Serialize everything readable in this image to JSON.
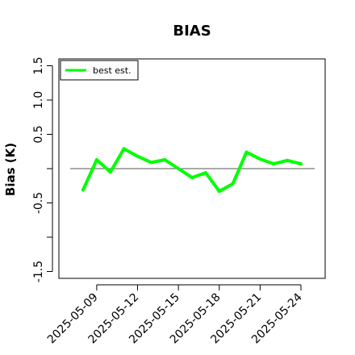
{
  "chart_data": {
    "type": "line",
    "title": "BIAS",
    "xlabel": "",
    "ylabel": "Bias (K)",
    "ylim": [
      -1.6,
      1.6
    ],
    "yticks": [
      -1.5,
      -1.0,
      -0.5,
      0.0,
      0.5,
      1.0,
      1.5
    ],
    "ytick_labels": [
      "-1.5",
      "",
      "-0.5",
      "",
      "0.5",
      "1.0",
      "1.5"
    ],
    "x": [
      "2025-05-08",
      "2025-05-09",
      "2025-05-10",
      "2025-05-11",
      "2025-05-12",
      "2025-05-13",
      "2025-05-14",
      "2025-05-15",
      "2025-05-16",
      "2025-05-17",
      "2025-05-18",
      "2025-05-19",
      "2025-05-20",
      "2025-05-21",
      "2025-05-22",
      "2025-05-23",
      "2025-05-24"
    ],
    "xticks": [
      "2025-05-09",
      "2025-05-12",
      "2025-05-15",
      "2025-05-18",
      "2025-05-21",
      "2025-05-24"
    ],
    "reference_line": 0.0,
    "series": [
      {
        "name": "best est.",
        "color": "#00ff00",
        "values": [
          -0.31,
          0.13,
          -0.05,
          0.29,
          0.18,
          0.09,
          0.13,
          0.0,
          -0.13,
          -0.06,
          -0.33,
          -0.22,
          0.24,
          0.14,
          0.07,
          0.12,
          0.07
        ]
      }
    ],
    "grid": false,
    "legend_position": "top-left"
  }
}
